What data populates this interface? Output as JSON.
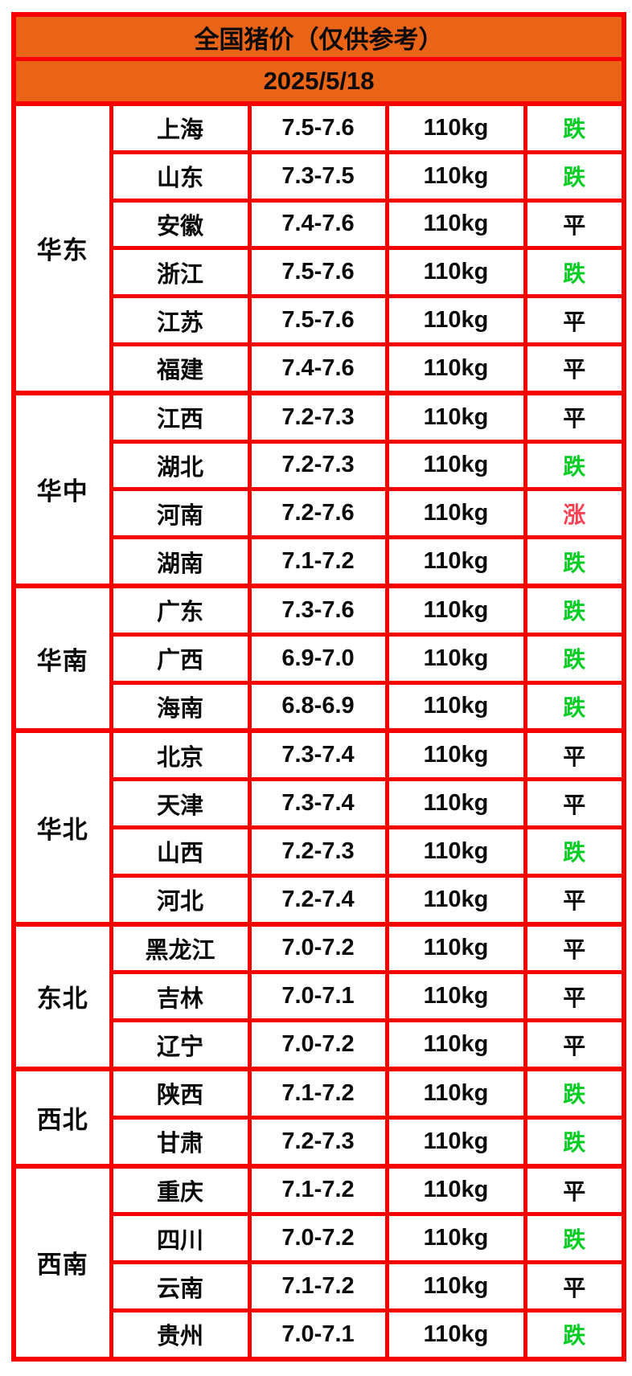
{
  "chart_data": {
    "type": "table",
    "title": "全国猪价（仅供参考）",
    "date": "2025/5/18",
    "columns": [
      "region",
      "province",
      "price_range",
      "weight",
      "trend"
    ],
    "trend_colors": {
      "down": "#00cc22",
      "flat": "#0a0a0a",
      "up": "#fa4252"
    },
    "accent_colors": {
      "header_bg": "#ea6418",
      "grid_border": "#f70000"
    },
    "regions": [
      {
        "name": "华东",
        "rows": [
          {
            "province": "上海",
            "price_range": "7.5-7.6",
            "weight": "110kg",
            "trend": "跌",
            "trend_key": "down"
          },
          {
            "province": "山东",
            "price_range": "7.3-7.5",
            "weight": "110kg",
            "trend": "跌",
            "trend_key": "down"
          },
          {
            "province": "安徽",
            "price_range": "7.4-7.6",
            "weight": "110kg",
            "trend": "平",
            "trend_key": "flat"
          },
          {
            "province": "浙江",
            "price_range": "7.5-7.6",
            "weight": "110kg",
            "trend": "跌",
            "trend_key": "down"
          },
          {
            "province": "江苏",
            "price_range": "7.5-7.6",
            "weight": "110kg",
            "trend": "平",
            "trend_key": "flat"
          },
          {
            "province": "福建",
            "price_range": "7.4-7.6",
            "weight": "110kg",
            "trend": "平",
            "trend_key": "flat"
          }
        ]
      },
      {
        "name": "华中",
        "rows": [
          {
            "province": "江西",
            "price_range": "7.2-7.3",
            "weight": "110kg",
            "trend": "平",
            "trend_key": "flat"
          },
          {
            "province": "湖北",
            "price_range": "7.2-7.3",
            "weight": "110kg",
            "trend": "跌",
            "trend_key": "down"
          },
          {
            "province": "河南",
            "price_range": "7.2-7.6",
            "weight": "110kg",
            "trend": "涨",
            "trend_key": "up"
          },
          {
            "province": "湖南",
            "price_range": "7.1-7.2",
            "weight": "110kg",
            "trend": "跌",
            "trend_key": "down"
          }
        ]
      },
      {
        "name": "华南",
        "rows": [
          {
            "province": "广东",
            "price_range": "7.3-7.6",
            "weight": "110kg",
            "trend": "跌",
            "trend_key": "down"
          },
          {
            "province": "广西",
            "price_range": "6.9-7.0",
            "weight": "110kg",
            "trend": "跌",
            "trend_key": "down"
          },
          {
            "province": "海南",
            "price_range": "6.8-6.9",
            "weight": "110kg",
            "trend": "跌",
            "trend_key": "down"
          }
        ]
      },
      {
        "name": "华北",
        "rows": [
          {
            "province": "北京",
            "price_range": "7.3-7.4",
            "weight": "110kg",
            "trend": "平",
            "trend_key": "flat"
          },
          {
            "province": "天津",
            "price_range": "7.3-7.4",
            "weight": "110kg",
            "trend": "平",
            "trend_key": "flat"
          },
          {
            "province": "山西",
            "price_range": "7.2-7.3",
            "weight": "110kg",
            "trend": "跌",
            "trend_key": "down"
          },
          {
            "province": "河北",
            "price_range": "7.2-7.4",
            "weight": "110kg",
            "trend": "平",
            "trend_key": "flat"
          }
        ]
      },
      {
        "name": "东北",
        "rows": [
          {
            "province": "黑龙江",
            "price_range": "7.0-7.2",
            "weight": "110kg",
            "trend": "平",
            "trend_key": "flat"
          },
          {
            "province": "吉林",
            "price_range": "7.0-7.1",
            "weight": "110kg",
            "trend": "平",
            "trend_key": "flat"
          },
          {
            "province": "辽宁",
            "price_range": "7.0-7.2",
            "weight": "110kg",
            "trend": "平",
            "trend_key": "flat"
          }
        ]
      },
      {
        "name": "西北",
        "rows": [
          {
            "province": "陕西",
            "price_range": "7.1-7.2",
            "weight": "110kg",
            "trend": "跌",
            "trend_key": "down"
          },
          {
            "province": "甘肃",
            "price_range": "7.2-7.3",
            "weight": "110kg",
            "trend": "跌",
            "trend_key": "down"
          }
        ]
      },
      {
        "name": "西南",
        "rows": [
          {
            "province": "重庆",
            "price_range": "7.1-7.2",
            "weight": "110kg",
            "trend": "平",
            "trend_key": "flat"
          },
          {
            "province": "四川",
            "price_range": "7.0-7.2",
            "weight": "110kg",
            "trend": "跌",
            "trend_key": "down"
          },
          {
            "province": "云南",
            "price_range": "7.1-7.2",
            "weight": "110kg",
            "trend": "平",
            "trend_key": "flat"
          },
          {
            "province": "贵州",
            "price_range": "7.0-7.1",
            "weight": "110kg",
            "trend": "跌",
            "trend_key": "down"
          }
        ]
      }
    ]
  }
}
